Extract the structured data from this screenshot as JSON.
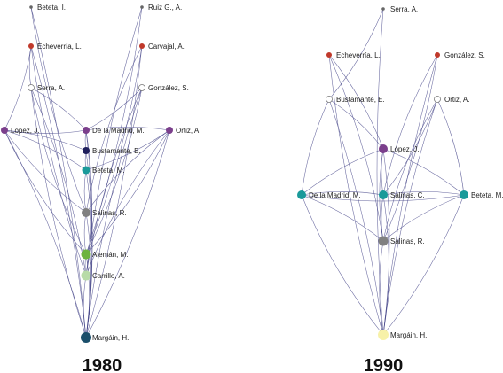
{
  "networks": [
    {
      "year": "1980",
      "nodes": [
        {
          "id": "beteta_i",
          "label": "Beteta, I.",
          "color": "#666666"
        },
        {
          "id": "ruiz",
          "label": "Ruiz G., A.",
          "color": "#666666"
        },
        {
          "id": "echeverria",
          "label": "Echeverría, L.",
          "color": "#c0392b"
        },
        {
          "id": "carvajal",
          "label": "Carvajal, A.",
          "color": "#c0392b"
        },
        {
          "id": "serra",
          "label": "Serra, A.",
          "color": "#ffffff"
        },
        {
          "id": "gonzalez",
          "label": "González, S.",
          "color": "#ffffff"
        },
        {
          "id": "lopez",
          "label": "López, J.",
          "color": "#7b3f8c"
        },
        {
          "id": "delamadrid",
          "label": "De la Madrid, M.",
          "color": "#7b3f8c"
        },
        {
          "id": "ortiz",
          "label": "Ortiz, A.",
          "color": "#7b3f8c"
        },
        {
          "id": "bustamante",
          "label": "Bustamante, E.",
          "color": "#1f1f5c"
        },
        {
          "id": "beteta_m",
          "label": "Beteta, M.",
          "color": "#1a9a9a"
        },
        {
          "id": "salinas_r",
          "label": "Salinas, R.",
          "color": "#808080"
        },
        {
          "id": "aleman",
          "label": "Alemán, M.",
          "color": "#6cb33f"
        },
        {
          "id": "carrillo",
          "label": "Carrillo, A.",
          "color": "#b8dba8"
        },
        {
          "id": "margain",
          "label": "Margáin, H.",
          "color": "#1b4f6b"
        }
      ]
    },
    {
      "year": "1990",
      "nodes": [
        {
          "id": "serra",
          "label": "Serra, A.",
          "color": "#666666"
        },
        {
          "id": "echeverria",
          "label": "Echeverría, L.",
          "color": "#c0392b"
        },
        {
          "id": "gonzalez",
          "label": "González, S.",
          "color": "#c0392b"
        },
        {
          "id": "bustamante",
          "label": "Bustamante, E.",
          "color": "#ffffff"
        },
        {
          "id": "ortiz",
          "label": "Ortiz, A.",
          "color": "#ffffff"
        },
        {
          "id": "lopez",
          "label": "López, J.",
          "color": "#7b3f8c"
        },
        {
          "id": "delamadrid",
          "label": "De la Madrid, M.",
          "color": "#1a9a9a"
        },
        {
          "id": "salinas_c",
          "label": "Salinas, C.",
          "color": "#1a9a9a"
        },
        {
          "id": "beteta_m",
          "label": "Beteta, M.",
          "color": "#1a9a9a"
        },
        {
          "id": "salinas_r",
          "label": "Salinas, R.",
          "color": "#808080"
        },
        {
          "id": "margain",
          "label": "Margáin, H.",
          "color": "#f7f1a8"
        }
      ]
    }
  ]
}
